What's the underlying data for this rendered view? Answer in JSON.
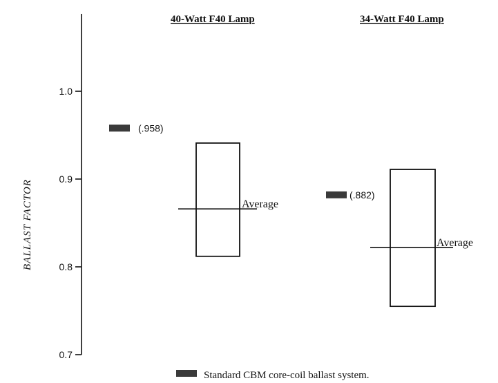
{
  "chart_data": {
    "type": "range",
    "ylabel": "BALLAST FACTOR",
    "ylim": [
      0.7,
      1.0
    ],
    "yticks": [
      "0.7",
      "0.8",
      "0.9",
      "1.0"
    ],
    "groups": [
      {
        "title": "40-Watt F40 Lamp",
        "standard_value": 0.958,
        "standard_label": "(.958)",
        "range_low": 0.812,
        "range_high": 0.941,
        "average": 0.866,
        "average_label": "Average"
      },
      {
        "title": "34-Watt F40 Lamp",
        "standard_value": 0.882,
        "standard_label": "(.882)",
        "range_low": 0.755,
        "range_high": 0.911,
        "average": 0.822,
        "average_label": "Average"
      }
    ],
    "legend": "Standard CBM core-coil ballast system."
  }
}
